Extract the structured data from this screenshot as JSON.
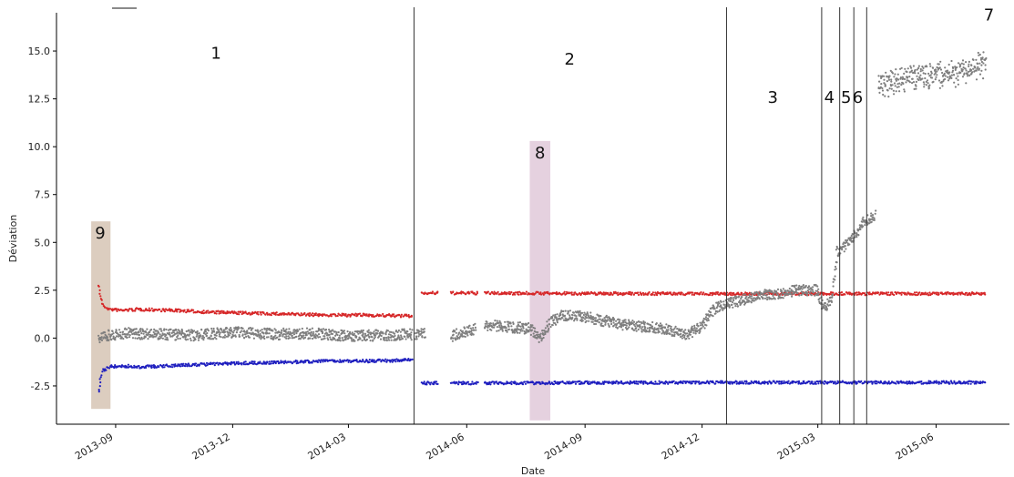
{
  "chart_data": {
    "type": "scatter",
    "title": "",
    "xlabel": "Date",
    "ylabel": "Déviation",
    "x_ticks": [
      "2013-09",
      "2013-12",
      "2014-03",
      "2014-06",
      "2014-09",
      "2014-12",
      "2015-03",
      "2015-06"
    ],
    "y_ticks": [
      "-2.5",
      "0.0",
      "2.5",
      "5.0",
      "7.5",
      "10.0",
      "12.5",
      "15.0"
    ],
    "xlim": [
      "2013-07-17",
      "2015-07-28"
    ],
    "ylim": [
      -4.5,
      17.0
    ],
    "grid": false,
    "series": [
      {
        "color": "#d62728",
        "segments": [
          {
            "x": [
              "2013-08-19",
              "2013-08-20",
              "2013-08-22",
              "2013-08-27",
              "2013-09-05",
              "2013-09-20",
              "2013-10-15",
              "2013-11-15",
              "2013-12-15",
              "2014-01-15",
              "2014-02-15",
              "2014-03-15",
              "2014-04-20"
            ],
            "y": [
              2.8,
              2.2,
              1.7,
              1.5,
              1.45,
              1.5,
              1.45,
              1.35,
              1.3,
              1.25,
              1.2,
              1.2,
              1.15
            ]
          },
          {
            "x": [
              "2014-04-27",
              "2014-05-10"
            ],
            "y": [
              2.35,
              2.35
            ]
          },
          {
            "x": [
              "2014-05-20",
              "2014-06-10"
            ],
            "y": [
              2.35,
              2.35
            ]
          },
          {
            "x": [
              "2014-06-15",
              "2014-09-01",
              "2014-12-01",
              "2015-03-01",
              "2015-04-15",
              "2015-07-10"
            ],
            "y": [
              2.35,
              2.33,
              2.32,
              2.32,
              2.32,
              2.32
            ]
          }
        ]
      },
      {
        "color": "#7f7f7f",
        "segments": [
          {
            "x": [
              "2013-08-19",
              "2013-08-25",
              "2013-09-10",
              "2013-10-01",
              "2013-11-01",
              "2013-12-01",
              "2014-01-01",
              "2014-02-01",
              "2014-03-01",
              "2014-04-20"
            ],
            "y": [
              0.05,
              0.15,
              0.25,
              0.2,
              0.15,
              0.3,
              0.2,
              0.25,
              0.1,
              0.2
            ]
          },
          {
            "x": [
              "2014-04-22",
              "2014-04-30"
            ],
            "y": [
              0.1,
              0.3
            ]
          },
          {
            "x": [
              "2014-05-20",
              "2014-06-08"
            ],
            "y": [
              0.1,
              0.5
            ]
          },
          {
            "x": [
              "2014-06-15",
              "2014-07-01",
              "2014-07-20",
              "2014-07-28",
              "2014-08-05",
              "2014-08-15",
              "2014-09-01",
              "2014-10-01",
              "2014-11-01",
              "2014-11-20",
              "2014-12-01",
              "2014-12-10",
              "2014-12-20",
              "2015-01-15",
              "2015-02-15",
              "2015-03-01",
              "2015-03-05",
              "2015-03-12",
              "2015-03-16",
              "2015-03-25",
              "2015-04-01",
              "2015-04-04",
              "2015-04-15"
            ],
            "y": [
              0.7,
              0.6,
              0.5,
              0.0,
              0.8,
              1.2,
              1.1,
              0.7,
              0.5,
              0.2,
              0.6,
              1.5,
              1.8,
              2.2,
              2.5,
              2.5,
              1.5,
              2.0,
              4.5,
              5.0,
              5.5,
              6.0,
              6.4
            ]
          },
          {
            "x": [
              "2015-04-17",
              "2015-05-01",
              "2015-05-15",
              "2015-06-01",
              "2015-06-15",
              "2015-07-01",
              "2015-07-10"
            ],
            "y": [
              13.3,
              13.4,
              13.6,
              13.7,
              13.9,
              14.1,
              14.4
            ]
          }
        ]
      },
      {
        "color": "#1f1fbf",
        "segments": [
          {
            "x": [
              "2013-08-19",
              "2013-08-20",
              "2013-08-22",
              "2013-08-27",
              "2013-09-05",
              "2013-09-20",
              "2013-10-15",
              "2013-11-15",
              "2013-12-15",
              "2014-01-15",
              "2014-02-15",
              "2014-03-15",
              "2014-04-20"
            ],
            "y": [
              -2.8,
              -2.2,
              -1.7,
              -1.5,
              -1.45,
              -1.5,
              -1.45,
              -1.35,
              -1.3,
              -1.25,
              -1.2,
              -1.2,
              -1.15
            ]
          },
          {
            "x": [
              "2014-04-27",
              "2014-05-10"
            ],
            "y": [
              -2.35,
              -2.35
            ]
          },
          {
            "x": [
              "2014-05-20",
              "2014-06-10"
            ],
            "y": [
              -2.35,
              -2.35
            ]
          },
          {
            "x": [
              "2014-06-15",
              "2014-09-01",
              "2014-12-01",
              "2015-03-01",
              "2015-04-15",
              "2015-07-10"
            ],
            "y": [
              -2.35,
              -2.33,
              -2.32,
              -2.32,
              -2.32,
              -2.32
            ]
          }
        ]
      }
    ],
    "vertical_lines": [
      "2014-04-21",
      "2014-12-20",
      "2015-03-04",
      "2015-03-18",
      "2015-03-29",
      "2015-04-08"
    ],
    "shaded_regions": [
      {
        "label": "9",
        "x": [
          "2013-08-13",
          "2013-08-28"
        ],
        "y": [
          -3.7,
          6.1
        ],
        "color": "#d8c8b8"
      },
      {
        "label": "8",
        "x": [
          "2014-07-20",
          "2014-08-05"
        ],
        "y": [
          -4.3,
          10.3
        ],
        "color": "#e2ccdc"
      }
    ],
    "region_labels": [
      {
        "text": "1",
        "x": "2013-11-18",
        "y": 14.6
      },
      {
        "text": "2",
        "x": "2014-08-20",
        "y": 14.3
      },
      {
        "text": "3",
        "x": "2015-01-25",
        "y": 12.3
      },
      {
        "text": "4",
        "x": "2015-03-10",
        "y": 12.3
      },
      {
        "text": "5",
        "x": "2015-03-23",
        "y": 12.3
      },
      {
        "text": "6",
        "x": "2015-04-01",
        "y": 12.3
      },
      {
        "text": "7",
        "x": "2015-07-12",
        "y": 16.6
      },
      {
        "text": "8",
        "x": "2014-07-28",
        "y": 9.4
      },
      {
        "text": "9",
        "x": "2013-08-20",
        "y": 5.2
      }
    ]
  }
}
